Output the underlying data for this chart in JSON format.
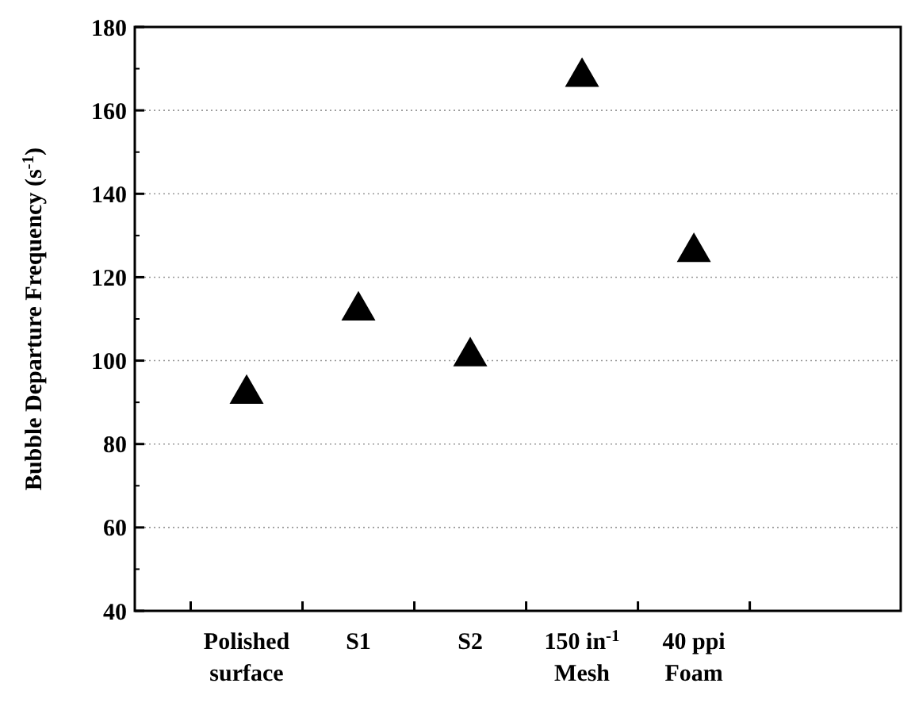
{
  "chart_data": {
    "type": "scatter",
    "ylabel": "Bubble Departure Frequency (s$^{-1}$)",
    "categories": [
      "Polished\nsurface",
      "S1",
      "S2",
      "150 in$^{-1}$\nMesh",
      "40 ppi\nFoam"
    ],
    "series": [
      {
        "color": "#000000",
        "values": [
          92,
          112,
          101,
          168,
          126
        ]
      }
    ],
    "ylim": [
      40,
      180
    ],
    "yticks": [
      40,
      60,
      80,
      100,
      120,
      140,
      160,
      180
    ],
    "grid": "y",
    "marker": "triangle"
  }
}
